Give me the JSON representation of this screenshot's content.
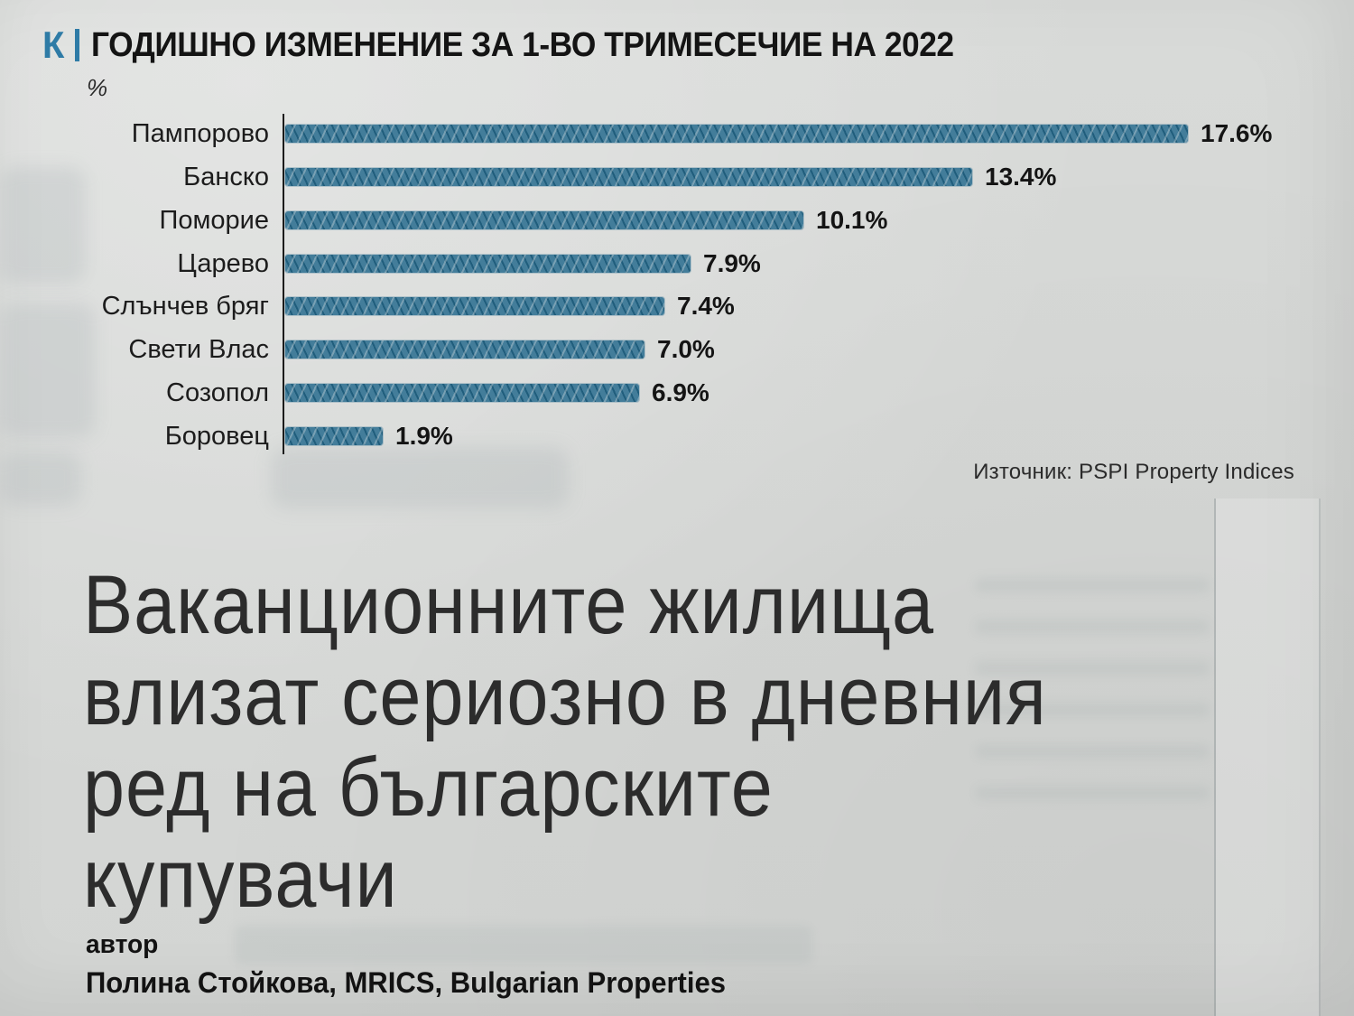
{
  "header": {
    "kicker": "К",
    "title": "ГОДИШНО ИЗМЕНЕНИЕ ЗА 1-ВО ТРИМЕСЕЧИЕ НА 2022"
  },
  "chart": {
    "unit_label": "%",
    "source": "Източник: PSPI Property Indices"
  },
  "chart_data": {
    "type": "bar",
    "orientation": "horizontal",
    "title": "ГОДИШНО ИЗМЕНЕНИЕ ЗА 1-ВО ТРИМЕСЕЧИЕ НА 2022",
    "unit": "%",
    "categories": [
      "Пампорово",
      "Банско",
      "Поморие",
      "Царево",
      "Слънчев бряг",
      "Свети Влас",
      "Созопол",
      "Боровец"
    ],
    "values": [
      17.6,
      13.4,
      10.1,
      7.9,
      7.4,
      7.0,
      6.9,
      1.9
    ],
    "value_labels": [
      "17.6%",
      "13.4%",
      "10.1%",
      "7.9%",
      "7.4%",
      "7.0%",
      "6.9%",
      "1.9%"
    ],
    "xlim": [
      0,
      18
    ],
    "grid": false,
    "legend": false,
    "bar_color": "#24688a",
    "source": "Източник: PSPI Property Indices"
  },
  "article": {
    "headline_lines": [
      "Ваканционните жилища",
      "влизат сериозно в дневния",
      "ред на българските",
      "купувачи"
    ],
    "author_label": "автор",
    "author": "Полина Стойкова, MRICS, Bulgarian Properties"
  },
  "colors": {
    "paper": "#d6d8d6",
    "bar": "#24688a",
    "kicker_blue": "#2e7ba6",
    "text_dark": "#1c1c1c"
  }
}
